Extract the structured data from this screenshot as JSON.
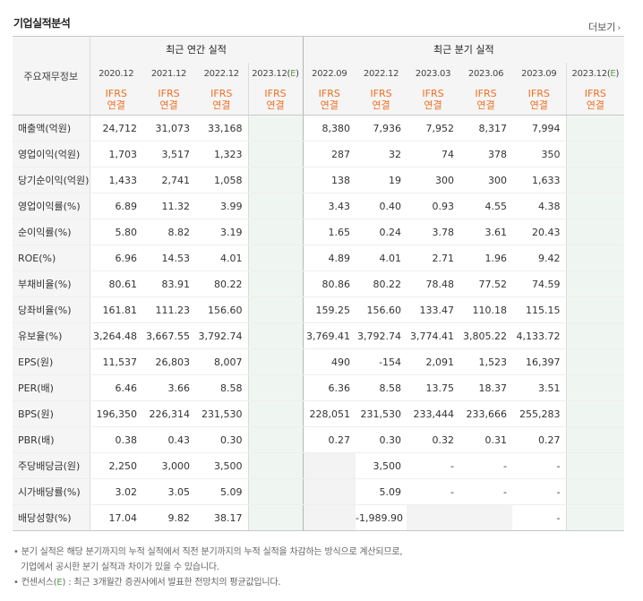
{
  "section_title": "기업실적분석",
  "more_link": "더보기",
  "row_header_label": "주요재무정보",
  "group_headers": {
    "annual": "최근 연간 실적",
    "quarterly": "최근 분기 실적"
  },
  "columns": [
    {
      "period": "2020.12",
      "estimate": false
    },
    {
      "period": "2021.12",
      "estimate": false
    },
    {
      "period": "2022.12",
      "estimate": false
    },
    {
      "period": "2023.12",
      "estimate": true
    },
    {
      "period": "2022.09",
      "estimate": false
    },
    {
      "period": "2022.12",
      "estimate": false
    },
    {
      "period": "2023.03",
      "estimate": false
    },
    {
      "period": "2023.06",
      "estimate": false
    },
    {
      "period": "2023.09",
      "estimate": false
    },
    {
      "period": "2023.12",
      "estimate": true
    }
  ],
  "estimate_mark": "E",
  "ifrs_label": "IFRS",
  "consolidated_label": "연결",
  "rows": [
    {
      "label": "매출액(억원)",
      "values": [
        "24,712",
        "31,073",
        "33,168",
        "",
        "8,380",
        "7,936",
        "7,952",
        "8,317",
        "7,994",
        ""
      ]
    },
    {
      "label": "영업이익(억원)",
      "values": [
        "1,703",
        "3,517",
        "1,323",
        "",
        "287",
        "32",
        "74",
        "378",
        "350",
        ""
      ]
    },
    {
      "label": "당기순이익(억원)",
      "values": [
        "1,433",
        "2,741",
        "1,058",
        "",
        "138",
        "19",
        "300",
        "300",
        "1,633",
        ""
      ]
    },
    {
      "label": "영업이익률(%)",
      "values": [
        "6.89",
        "11.32",
        "3.99",
        "",
        "3.43",
        "0.40",
        "0.93",
        "4.55",
        "4.38",
        ""
      ]
    },
    {
      "label": "순이익률(%)",
      "values": [
        "5.80",
        "8.82",
        "3.19",
        "",
        "1.65",
        "0.24",
        "3.78",
        "3.61",
        "20.43",
        ""
      ]
    },
    {
      "label": "ROE(%)",
      "values": [
        "6.96",
        "14.53",
        "4.01",
        "",
        "4.89",
        "4.01",
        "2.71",
        "1.96",
        "9.42",
        ""
      ]
    },
    {
      "label": "부채비율(%)",
      "values": [
        "80.61",
        "83.91",
        "80.22",
        "",
        "80.86",
        "80.22",
        "78.48",
        "77.52",
        "74.59",
        ""
      ]
    },
    {
      "label": "당좌비율(%)",
      "values": [
        "161.81",
        "111.23",
        "156.60",
        "",
        "159.25",
        "156.60",
        "133.47",
        "110.18",
        "115.15",
        ""
      ]
    },
    {
      "label": "유보율(%)",
      "values": [
        "3,264.48",
        "3,667.55",
        "3,792.74",
        "",
        "3,769.41",
        "3,792.74",
        "3,774.41",
        "3,805.22",
        "4,133.72",
        ""
      ]
    },
    {
      "label": "EPS(원)",
      "values": [
        "11,537",
        "26,803",
        "8,007",
        "",
        "490",
        "-154",
        "2,091",
        "1,523",
        "16,397",
        ""
      ]
    },
    {
      "label": "PER(배)",
      "values": [
        "6.46",
        "3.66",
        "8.58",
        "",
        "6.36",
        "8.58",
        "13.75",
        "18.37",
        "3.51",
        ""
      ]
    },
    {
      "label": "BPS(원)",
      "values": [
        "196,350",
        "226,314",
        "231,530",
        "",
        "228,051",
        "231,530",
        "233,444",
        "233,666",
        "255,283",
        ""
      ]
    },
    {
      "label": "PBR(배)",
      "values": [
        "0.38",
        "0.43",
        "0.30",
        "",
        "0.27",
        "0.30",
        "0.32",
        "0.31",
        "0.27",
        ""
      ]
    },
    {
      "label": "주당배당금(원)",
      "values": [
        "2,250",
        "3,000",
        "3,500",
        "",
        "",
        "3,500",
        "-",
        "-",
        "-",
        ""
      ]
    },
    {
      "label": "시가배당률(%)",
      "values": [
        "3.02",
        "3.05",
        "5.09",
        "",
        "",
        "5.09",
        "-",
        "-",
        "-",
        ""
      ]
    },
    {
      "label": "배당성향(%)",
      "values": [
        "17.04",
        "9.82",
        "38.17",
        "",
        "",
        "-1,989.90",
        "",
        "",
        "-",
        ""
      ]
    }
  ],
  "notes": {
    "note1_line1": "분기 실적은 해당 분기까지의 누적 실적에서 직전 분기까지의 누적 실적을 차감하는 방식으로 계산되므로,",
    "note1_line2": "기업에서 공시한 분기 실적과 차이가 있을 수 있습니다.",
    "note2_prefix": "컨센서스(",
    "note2_suffix": ") : 최근 3개월간 증권사에서 발표한 전망치의 평균값입니다."
  }
}
